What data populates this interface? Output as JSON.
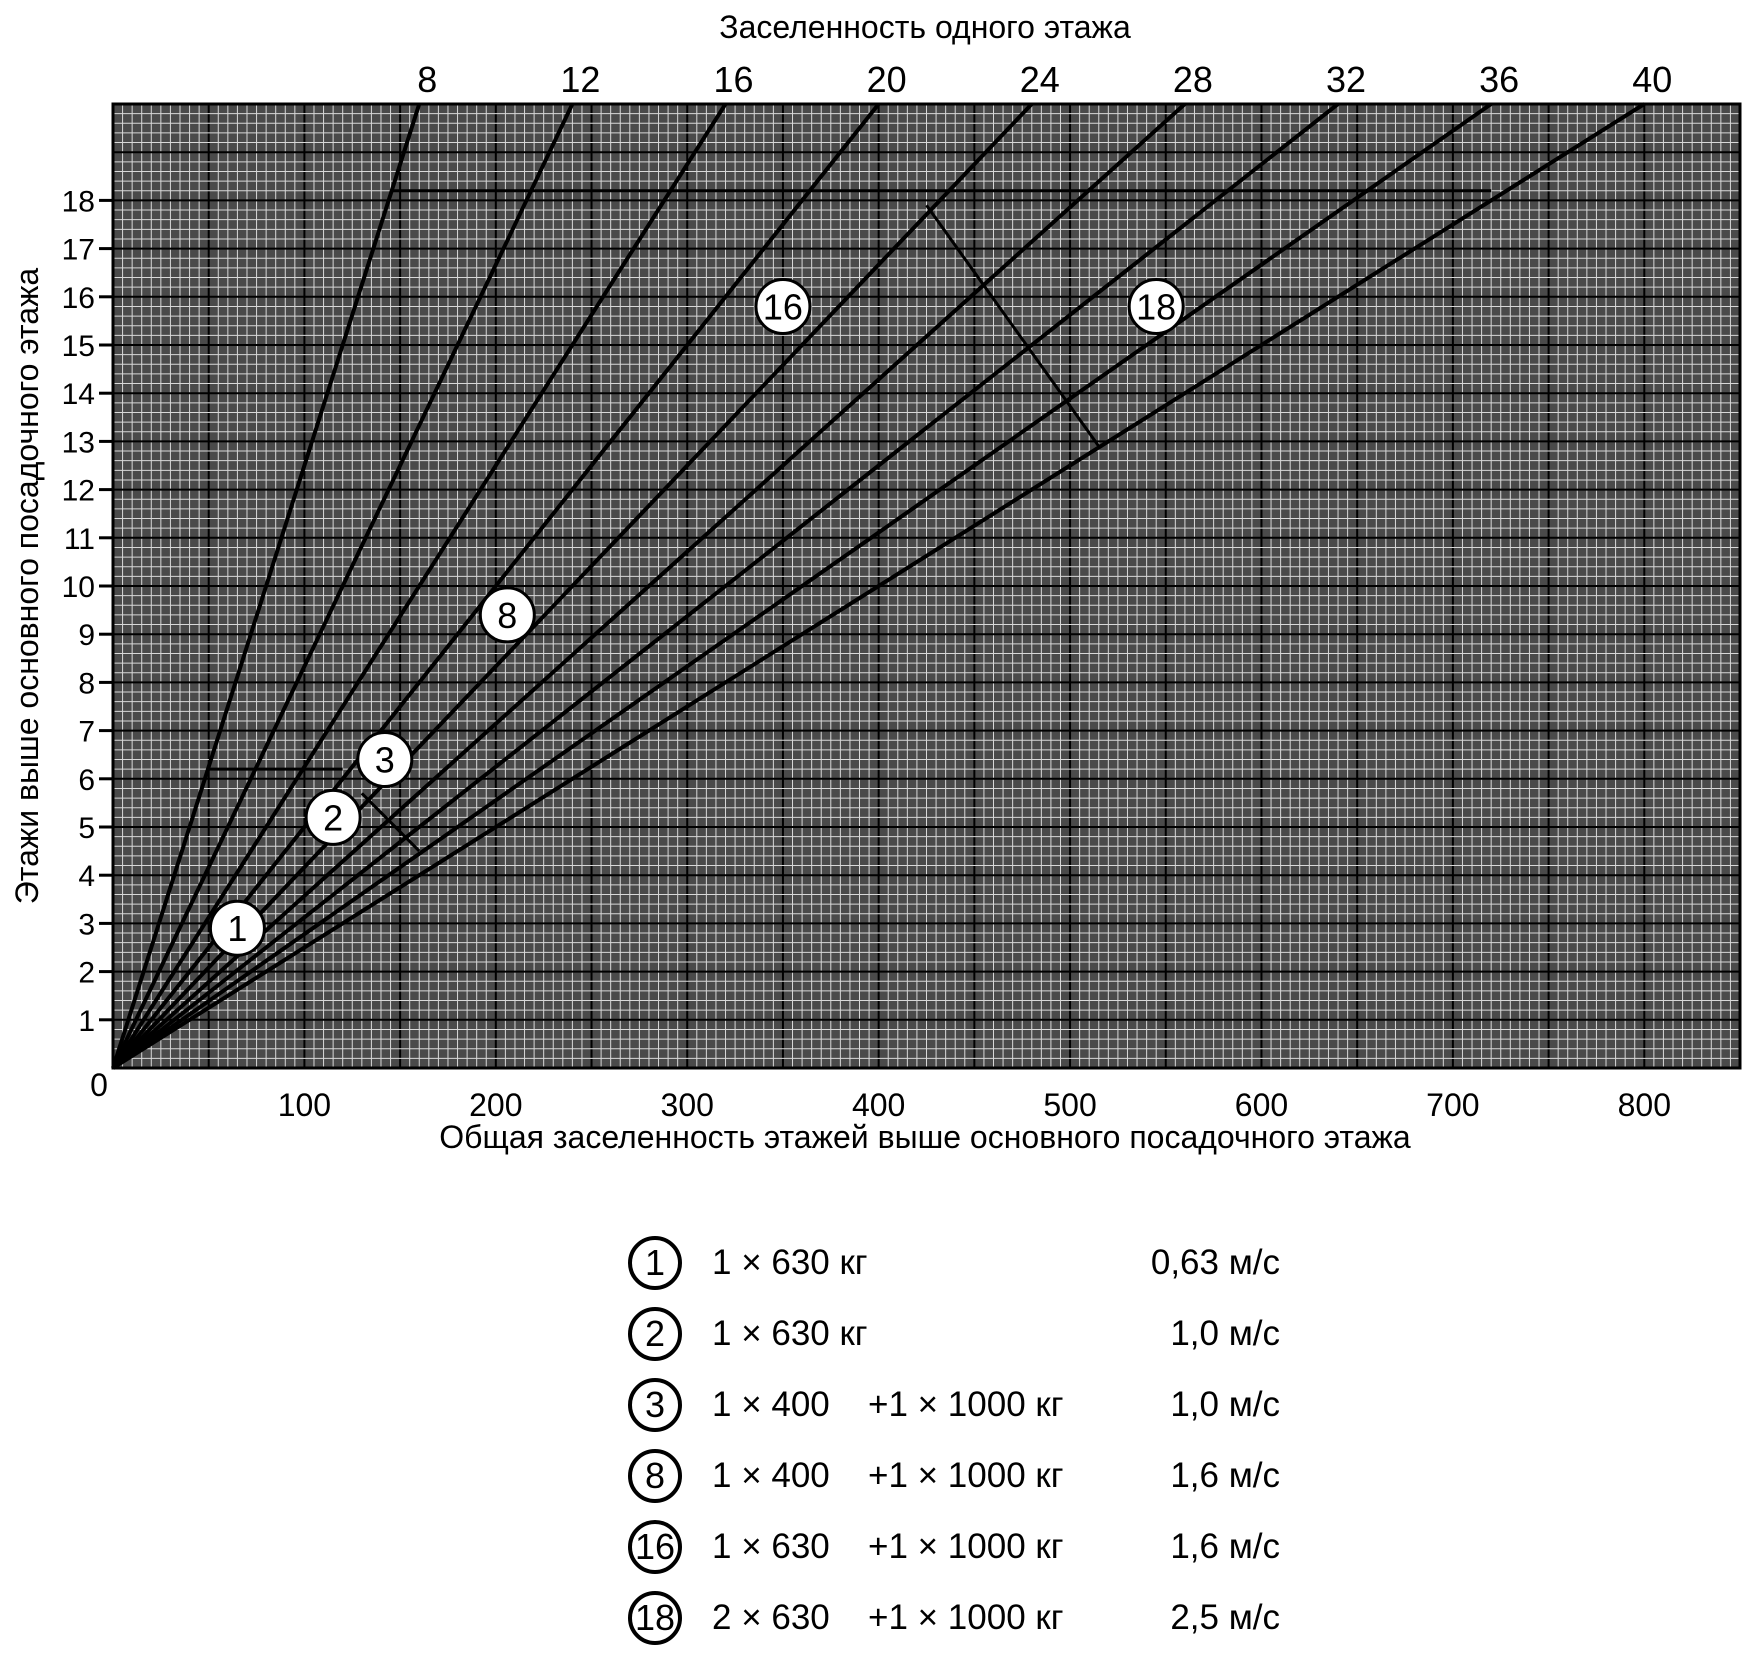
{
  "chart_data": {
    "type": "line",
    "title": "Заселенность одного этажа",
    "xlabel": "Общая заселенность этажей выше основного посадочного этажа",
    "ylabel": "Этажи выше основного посадочного этажа",
    "xlim": [
      0,
      850
    ],
    "ylim": [
      0,
      20
    ],
    "x_ticks": [
      0,
      100,
      200,
      300,
      400,
      500,
      600,
      700,
      800
    ],
    "x_tick_labels": [
      "0",
      "100",
      "200",
      "300",
      "400",
      "500",
      "600",
      "700",
      "800"
    ],
    "y_ticks": [
      1,
      2,
      3,
      4,
      5,
      6,
      7,
      8,
      9,
      10,
      11,
      12,
      13,
      14,
      15,
      16,
      17,
      18
    ],
    "y_tick_labels": [
      "1",
      "2",
      "3",
      "4",
      "5",
      "6",
      "7",
      "8",
      "9",
      "10",
      "11",
      "12",
      "13",
      "14",
      "15",
      "16",
      "17",
      "18"
    ],
    "grid": true,
    "series": [
      {
        "name": "8",
        "x": [
          0,
          160
        ],
        "y": [
          0,
          20
        ]
      },
      {
        "name": "12",
        "x": [
          0,
          240
        ],
        "y": [
          0,
          20
        ]
      },
      {
        "name": "16",
        "x": [
          0,
          320
        ],
        "y": [
          0,
          20
        ]
      },
      {
        "name": "20",
        "x": [
          0,
          400
        ],
        "y": [
          0,
          20
        ]
      },
      {
        "name": "24",
        "x": [
          0,
          480
        ],
        "y": [
          0,
          20
        ]
      },
      {
        "name": "28",
        "x": [
          0,
          560
        ],
        "y": [
          0,
          20
        ]
      },
      {
        "name": "32",
        "x": [
          0,
          640
        ],
        "y": [
          0,
          20
        ]
      },
      {
        "name": "36",
        "x": [
          0,
          720
        ],
        "y": [
          0,
          20
        ]
      },
      {
        "name": "40",
        "x": [
          0,
          800
        ],
        "y": [
          0,
          20
        ]
      }
    ],
    "reference_lines": [
      {
        "x": [
          145,
          720
        ],
        "y": [
          18.2,
          18.2
        ]
      },
      {
        "x": [
          50,
          120
        ],
        "y": [
          6.2,
          6.2
        ]
      },
      {
        "x": [
          425,
          515
        ],
        "y": [
          17.9,
          12.9
        ]
      },
      {
        "x": [
          130,
          160
        ],
        "y": [
          5.7,
          4.5
        ]
      }
    ],
    "annotations": [
      {
        "label": "1",
        "x": 65,
        "y": 2.9
      },
      {
        "label": "2",
        "x": 115,
        "y": 5.2
      },
      {
        "label": "3",
        "x": 142,
        "y": 6.4
      },
      {
        "label": "8",
        "x": 206,
        "y": 9.4
      },
      {
        "label": "16",
        "x": 350,
        "y": 15.8
      },
      {
        "label": "18",
        "x": 545,
        "y": 15.8
      }
    ]
  },
  "legend": [
    {
      "marker": "1",
      "config": "1 × 630 кг",
      "extra": "",
      "speed": "0,63 м/с"
    },
    {
      "marker": "2",
      "config": "1 × 630 кг",
      "extra": "",
      "speed": "1,0 м/с"
    },
    {
      "marker": "3",
      "config": "1 × 400",
      "extra": "+1 × 1000 кг",
      "speed": "1,0 м/с"
    },
    {
      "marker": "8",
      "config": "1 × 400",
      "extra": "+1 × 1000 кг",
      "speed": "1,6 м/с"
    },
    {
      "marker": "16",
      "config": "1 × 630",
      "extra": "+1 × 1000 кг",
      "speed": "1,6 м/с"
    },
    {
      "marker": "18",
      "config": "2 × 630",
      "extra": "+1 × 1000 кг",
      "speed": "2,5 м/с"
    }
  ]
}
